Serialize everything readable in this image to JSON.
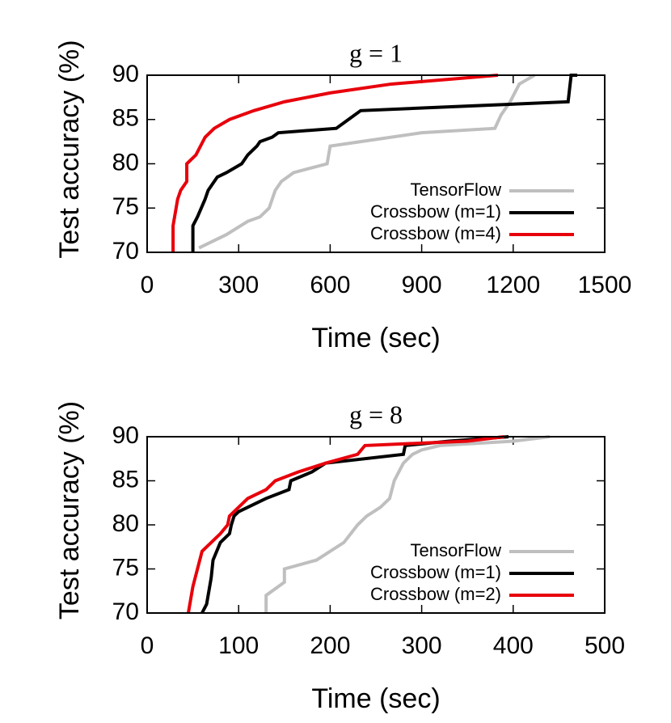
{
  "chart_data": [
    {
      "type": "line",
      "title": "g = 1",
      "x_label": "Time (sec)",
      "y_label": "Test accuracy (%)",
      "xlim": [
        0,
        1500
      ],
      "xticks": [
        0,
        300,
        600,
        900,
        1200,
        1500
      ],
      "ylim": [
        70,
        90
      ],
      "yticks": [
        70,
        75,
        80,
        85,
        90
      ],
      "legend": "lower right",
      "series": [
        {
          "name": "TensorFlow",
          "color": "#bfbfbf",
          "x": [
            170,
            200,
            260,
            330,
            370,
            400,
            410,
            420,
            440,
            480,
            590,
            600,
            700,
            900,
            1140,
            1160,
            1190,
            1220,
            1270
          ],
          "values": [
            70.5,
            71,
            72,
            73.5,
            74,
            75,
            76,
            77,
            78,
            79,
            80,
            82,
            82.5,
            83.5,
            84,
            85.5,
            87,
            89,
            90
          ]
        },
        {
          "name": "Crossbow (m=1)",
          "color": "#000000",
          "x": [
            150,
            150,
            165,
            190,
            200,
            220,
            230,
            260,
            310,
            330,
            360,
            370,
            410,
            430,
            620,
            660,
            700,
            1380,
            1390,
            1410
          ],
          "values": [
            70,
            73,
            74,
            76,
            77,
            78,
            78.5,
            79,
            80,
            81,
            82,
            82.5,
            83,
            83.5,
            84,
            85,
            86,
            87,
            90,
            90
          ]
        },
        {
          "name": "Crossbow (m=4)",
          "color": "#e8000b",
          "x": [
            85,
            85,
            100,
            110,
            130,
            130,
            160,
            190,
            220,
            270,
            350,
            450,
            600,
            800,
            1150
          ],
          "values": [
            70,
            73,
            76,
            77,
            78,
            80,
            81,
            83,
            84,
            85,
            86,
            87,
            88,
            89,
            90
          ]
        }
      ]
    },
    {
      "type": "line",
      "title": "g = 8",
      "x_label": "Time (sec)",
      "y_label": "Test accuracy (%)",
      "xlim": [
        0,
        500
      ],
      "xticks": [
        0,
        100,
        200,
        300,
        400,
        500
      ],
      "ylim": [
        70,
        90
      ],
      "yticks": [
        70,
        75,
        80,
        85,
        90
      ],
      "legend": "lower right",
      "series": [
        {
          "name": "TensorFlow",
          "color": "#bfbfbf",
          "x": [
            130,
            130,
            150,
            150,
            185,
            200,
            215,
            230,
            240,
            255,
            265,
            270,
            275,
            280,
            290,
            300,
            320,
            400,
            440
          ],
          "values": [
            70,
            72,
            73.5,
            75,
            76,
            77,
            78,
            80,
            81,
            82,
            83,
            85,
            86,
            87,
            88,
            88.5,
            89,
            89.5,
            90
          ]
        },
        {
          "name": "Crossbow (m=1)",
          "color": "#000000",
          "x": [
            60,
            65,
            70,
            72,
            80,
            90,
            92,
            95,
            100,
            130,
            155,
            157,
            180,
            195,
            280,
            282,
            330,
            395
          ],
          "values": [
            70,
            71,
            74,
            76,
            78,
            79,
            80,
            81,
            81.5,
            83,
            84,
            85,
            86,
            87,
            88,
            89,
            89.5,
            90
          ]
        },
        {
          "name": "Crossbow (m=2)",
          "color": "#e8000b",
          "x": [
            45,
            50,
            55,
            60,
            70,
            80,
            88,
            90,
            100,
            110,
            130,
            140,
            165,
            195,
            230,
            238,
            350,
            390
          ],
          "values": [
            70,
            73,
            75,
            77,
            78,
            79,
            80,
            81,
            82,
            83,
            84,
            85,
            86,
            87,
            88,
            89,
            89.5,
            90
          ]
        }
      ]
    }
  ]
}
